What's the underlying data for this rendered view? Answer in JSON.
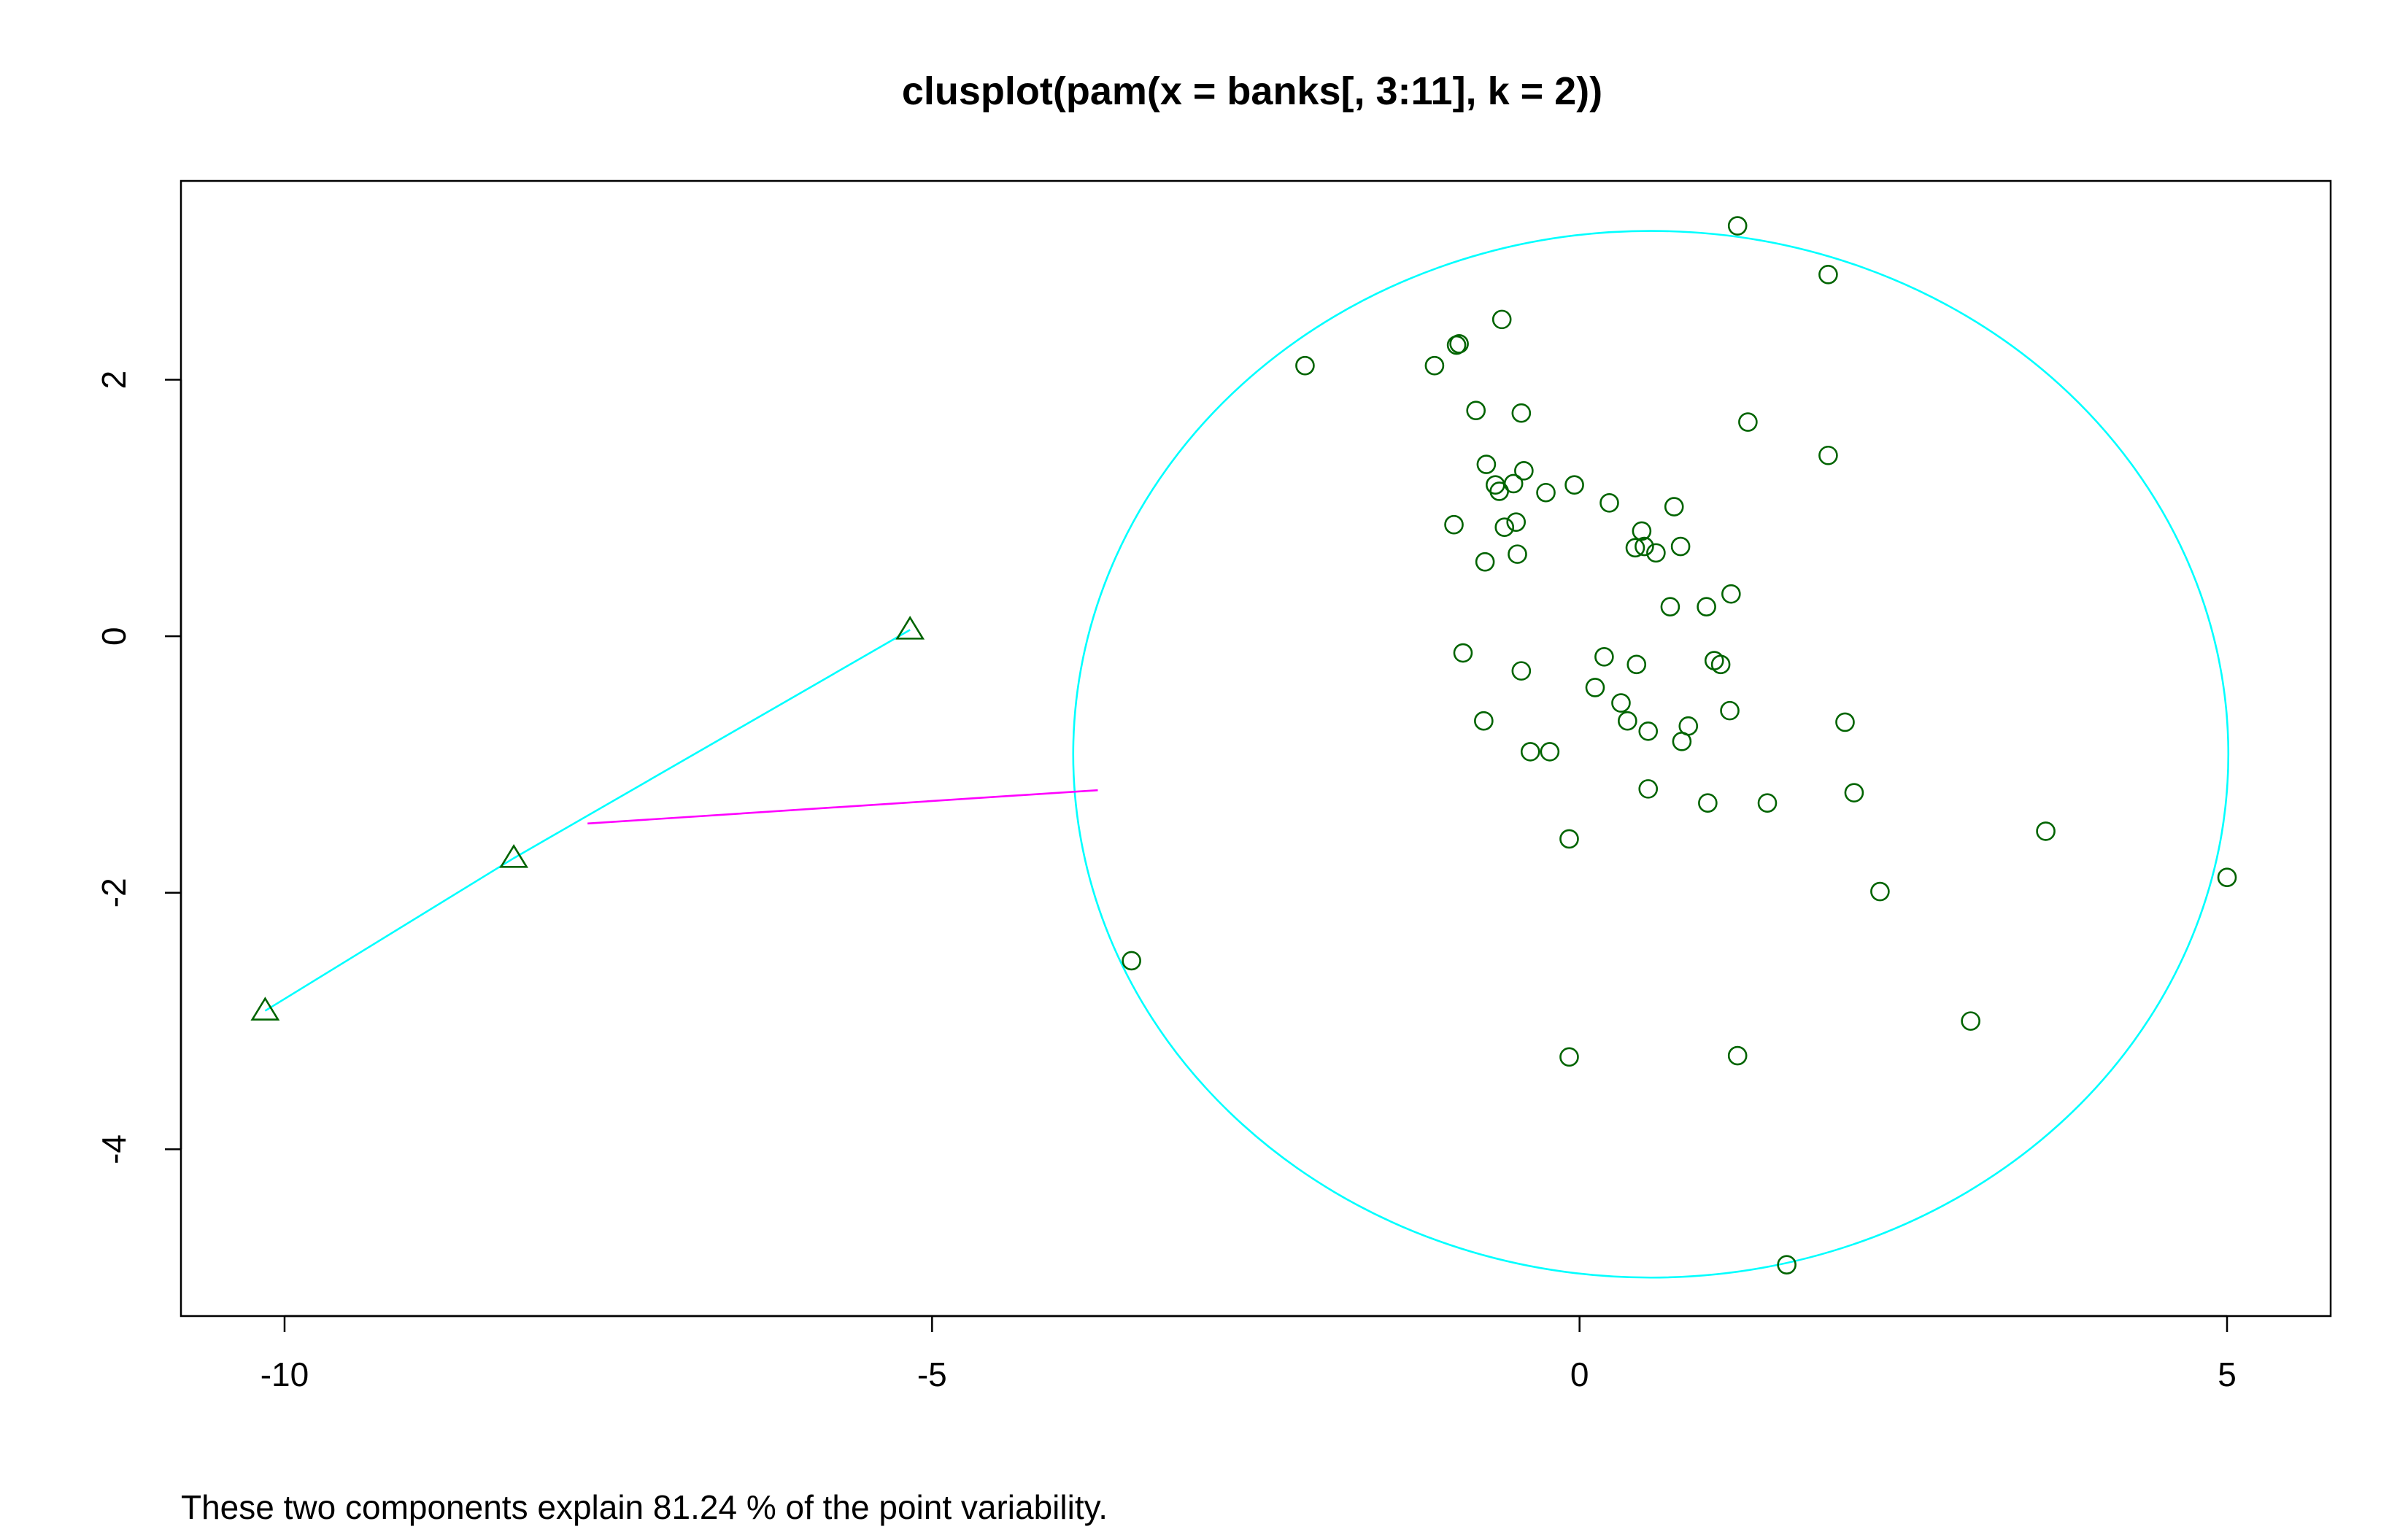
{
  "chart_data": {
    "type": "scatter",
    "title": "clusplot(pam(x = banks[, 3:11], k = 2))",
    "caption": "These two components explain 81.24 % of the point variability.",
    "xlabel": "",
    "ylabel": "",
    "xlim": [
      -10.8,
      5.8
    ],
    "ylim": [
      -5.3,
      3.55
    ],
    "grid": false,
    "x_ticks": [
      {
        "value": -10,
        "label": "-10"
      },
      {
        "value": -5,
        "label": "-5"
      },
      {
        "value": 0,
        "label": "0"
      },
      {
        "value": 5,
        "label": "5"
      }
    ],
    "y_ticks": [
      {
        "value": -4,
        "label": "-4"
      },
      {
        "value": -2,
        "label": "-2"
      },
      {
        "value": 0,
        "label": "0"
      },
      {
        "value": 2,
        "label": "2"
      }
    ],
    "colors": {
      "points": "#006400",
      "clusters": "#00ffff",
      "connector": "#ff00ff",
      "frame": "#000000"
    },
    "clusters": [
      {
        "id": 1,
        "shape": "triangle",
        "points": [
          [
            -5.17,
            0.05
          ],
          [
            -8.23,
            -1.73
          ],
          [
            -10.15,
            -2.92
          ]
        ]
      },
      {
        "id": 2,
        "shape": "circle",
        "ellipse": {
          "cx": 0.55,
          "cy": -0.92,
          "rx": 4.46,
          "ry": 4.08
        },
        "points": [
          [
            1.22,
            3.2
          ],
          [
            1.92,
            2.82
          ],
          [
            -0.6,
            2.47
          ],
          [
            -0.93,
            2.28
          ],
          [
            -0.95,
            2.27
          ],
          [
            -2.12,
            2.11
          ],
          [
            -1.12,
            2.11
          ],
          [
            -0.8,
            1.76
          ],
          [
            -0.45,
            1.74
          ],
          [
            1.3,
            1.67
          ],
          [
            1.92,
            1.41
          ],
          [
            -0.72,
            1.34
          ],
          [
            -0.43,
            1.29
          ],
          [
            -0.65,
            1.18
          ],
          [
            -0.51,
            1.19
          ],
          [
            -0.04,
            1.18
          ],
          [
            -0.62,
            1.13
          ],
          [
            -0.26,
            1.12
          ],
          [
            0.23,
            1.04
          ],
          [
            0.73,
            1.01
          ],
          [
            -0.97,
            0.87
          ],
          [
            -0.49,
            0.89
          ],
          [
            -0.58,
            0.85
          ],
          [
            0.48,
            0.82
          ],
          [
            0.43,
            0.69
          ],
          [
            0.5,
            0.7
          ],
          [
            0.59,
            0.65
          ],
          [
            0.78,
            0.7
          ],
          [
            -0.48,
            0.64
          ],
          [
            -0.73,
            0.58
          ],
          [
            1.17,
            0.33
          ],
          [
            0.7,
            0.23
          ],
          [
            0.98,
            0.23
          ],
          [
            -0.9,
            -0.13
          ],
          [
            0.19,
            -0.16
          ],
          [
            1.04,
            -0.19
          ],
          [
            1.09,
            -0.22
          ],
          [
            0.44,
            -0.22
          ],
          [
            -0.45,
            -0.27
          ],
          [
            0.12,
            -0.4
          ],
          [
            0.32,
            -0.52
          ],
          [
            1.16,
            -0.58
          ],
          [
            -0.74,
            -0.66
          ],
          [
            0.37,
            -0.66
          ],
          [
            2.05,
            -0.67
          ],
          [
            0.84,
            -0.7
          ],
          [
            0.53,
            -0.74
          ],
          [
            0.79,
            -0.82
          ],
          [
            -0.38,
            -0.9
          ],
          [
            -0.23,
            -0.9
          ],
          [
            0.53,
            -1.19
          ],
          [
            2.12,
            -1.22
          ],
          [
            0.99,
            -1.3
          ],
          [
            1.45,
            -1.3
          ],
          [
            3.6,
            -1.52
          ],
          [
            -0.08,
            -1.58
          ],
          [
            5.0,
            -1.88
          ],
          [
            2.32,
            -1.99
          ],
          [
            -3.46,
            -2.53
          ],
          [
            3.02,
            -3.0
          ],
          [
            -0.08,
            -3.28
          ],
          [
            1.22,
            -3.27
          ],
          [
            1.6,
            -4.9
          ]
        ]
      }
    ],
    "connector": {
      "from": [
        -7.66,
        -1.46
      ],
      "to": [
        -3.72,
        -1.2
      ]
    }
  }
}
